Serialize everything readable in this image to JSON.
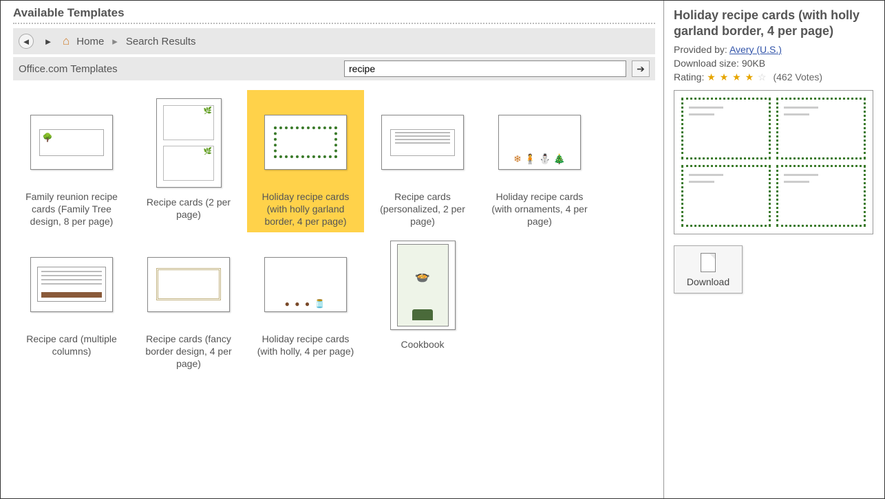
{
  "header": {
    "title": "Available Templates"
  },
  "nav": {
    "home_label": "Home",
    "crumb_current": "Search Results"
  },
  "search": {
    "label": "Office.com Templates",
    "value": "recipe"
  },
  "templates": [
    {
      "caption": "Family reunion recipe cards (Family Tree design, 8 per page)",
      "shape": "landscape",
      "kind": "tree"
    },
    {
      "caption": "Recipe cards (2 per page)",
      "shape": "portrait",
      "kind": "twocard"
    },
    {
      "caption": "Holiday recipe cards (with holly garland border, 4 per page)",
      "shape": "landscape",
      "kind": "holly",
      "selected": true
    },
    {
      "caption": "Recipe cards (personalized, 2 per page)",
      "shape": "landscape",
      "kind": "lines"
    },
    {
      "caption": "Holiday recipe cards (with ornaments, 4 per page)",
      "shape": "landscape",
      "kind": "ornaments"
    },
    {
      "caption": "Recipe card (multiple columns)",
      "shape": "landscape",
      "kind": "multicol"
    },
    {
      "caption": "Recipe cards (fancy border design, 4 per page)",
      "shape": "landscape",
      "kind": "fancy"
    },
    {
      "caption": "Holiday recipe cards (with holly, 4 per page)",
      "shape": "landscape",
      "kind": "jars"
    },
    {
      "caption": "Cookbook",
      "shape": "portrait",
      "kind": "cookbook"
    }
  ],
  "detail": {
    "title": "Holiday recipe cards (with holly garland border, 4 per page)",
    "provided_prefix": "Provided by: ",
    "provider": "Avery (U.S.)",
    "size_prefix": "Download size: ",
    "size_value": "90KB",
    "rating_prefix": "Rating: ",
    "rating_value": 4,
    "rating_max": 5,
    "votes_label": "(462 Votes)",
    "download_label": "Download"
  },
  "colors": {
    "selected_bg": "#ffd24a",
    "holly_green": "#3a7a2a",
    "panel_gray": "#e8e8e8"
  }
}
